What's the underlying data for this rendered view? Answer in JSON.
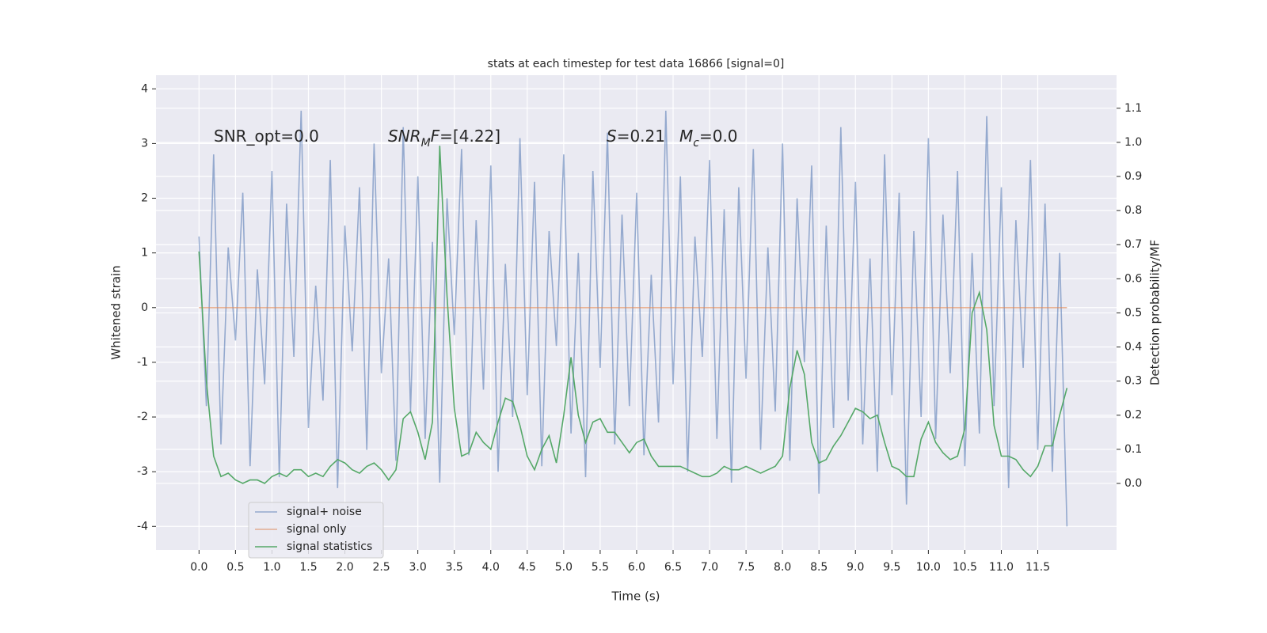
{
  "chart_data": {
    "type": "line",
    "title": "stats at each timestep for test data 16866 [signal=0]",
    "xlabel": "Time (s)",
    "ylabel": "Whitened strain",
    "y2label": "Detection probability/MF",
    "annotations": [
      {
        "parts": [
          {
            "text": "SNR_opt=0.0",
            "style": "normal"
          }
        ]
      },
      {
        "parts": [
          {
            "text": "SNR",
            "style": "italic"
          },
          {
            "text": "M",
            "style": "sub"
          },
          {
            "text": "F",
            "style": "italic"
          },
          {
            "text": "=[4.22]",
            "style": "normal"
          }
        ]
      },
      {
        "parts": [
          {
            "text": "S",
            "style": "italic"
          },
          {
            "text": "=0.21",
            "style": "normal"
          }
        ]
      },
      {
        "parts": [
          {
            "text": "M",
            "style": "italic"
          },
          {
            "text": "c",
            "style": "sub"
          },
          {
            "text": "=0.0",
            "style": "normal"
          }
        ]
      }
    ],
    "x": [
      0,
      0.1,
      0.2,
      0.3,
      0.4,
      0.5,
      0.6,
      0.7,
      0.8,
      0.9,
      1,
      1.1,
      1.2,
      1.3,
      1.4,
      1.5,
      1.6,
      1.7,
      1.8,
      1.9,
      2,
      2.1,
      2.2,
      2.3,
      2.4,
      2.5,
      2.6,
      2.7,
      2.8,
      2.9,
      3,
      3.1,
      3.2,
      3.3,
      3.4,
      3.5,
      3.6,
      3.7,
      3.8,
      3.9,
      4,
      4.1,
      4.2,
      4.3,
      4.4,
      4.5,
      4.6,
      4.7,
      4.8,
      4.9,
      5,
      5.1,
      5.2,
      5.3,
      5.4,
      5.5,
      5.6,
      5.7,
      5.8,
      5.9,
      6,
      6.1,
      6.2,
      6.3,
      6.4,
      6.5,
      6.6,
      6.7,
      6.8,
      6.9,
      7,
      7.1,
      7.2,
      7.3,
      7.4,
      7.5,
      7.6,
      7.7,
      7.8,
      7.9,
      8,
      8.1,
      8.2,
      8.3,
      8.4,
      8.5,
      8.6,
      8.7,
      8.8,
      8.9,
      9,
      9.1,
      9.2,
      9.3,
      9.4,
      9.5,
      9.6,
      9.7,
      9.8,
      9.9,
      10,
      10.1,
      10.2,
      10.3,
      10.4,
      10.5,
      10.6,
      10.7,
      10.8,
      10.9,
      11,
      11.1,
      11.2,
      11.3,
      11.4,
      11.5,
      11.6,
      11.7,
      11.8,
      11.9
    ],
    "series": [
      {
        "name": "signal+ noise",
        "color": "#4c72b0",
        "opacity": 0.55,
        "axis": "y",
        "values": [
          1.3,
          -1.8,
          2.8,
          -2.5,
          1.1,
          -0.6,
          2.1,
          -2.9,
          0.7,
          -1.4,
          2.5,
          -3.1,
          1.9,
          -0.9,
          3.6,
          -2.2,
          0.4,
          -1.7,
          2.7,
          -3.3,
          1.5,
          -0.8,
          2.2,
          -2.6,
          3.0,
          -1.2,
          0.9,
          -2.8,
          3.3,
          -1.9,
          2.4,
          -2.4,
          1.2,
          -3.2,
          2.0,
          -0.5,
          2.9,
          -2.7,
          1.6,
          -1.5,
          2.6,
          -3.0,
          0.8,
          -2.0,
          3.1,
          -1.6,
          2.3,
          -2.9,
          1.4,
          -0.7,
          2.8,
          -2.3,
          1.0,
          -3.1,
          2.5,
          -1.1,
          3.2,
          -2.5,
          1.7,
          -1.8,
          2.1,
          -2.7,
          0.6,
          -2.1,
          3.6,
          -1.4,
          2.4,
          -3.0,
          1.3,
          -0.9,
          2.7,
          -2.4,
          1.8,
          -3.2,
          2.2,
          -1.3,
          2.9,
          -2.6,
          1.1,
          -1.9,
          3.0,
          -2.8,
          2.0,
          -1.0,
          2.6,
          -3.4,
          1.5,
          -2.2,
          3.3,
          -1.7,
          2.3,
          -2.5,
          0.9,
          -3.0,
          2.8,
          -1.6,
          2.1,
          -3.6,
          1.4,
          -2.0,
          3.1,
          -2.4,
          1.7,
          -1.2,
          2.5,
          -2.9,
          1.0,
          -2.3,
          3.5,
          -1.8,
          2.2,
          -3.3,
          1.6,
          -1.1,
          2.7,
          -2.6,
          1.9,
          -3.0,
          1.0,
          -4.0
        ]
      },
      {
        "name": "signal only",
        "color": "#dd8452",
        "opacity": 0.6,
        "axis": "y",
        "values": [
          0,
          0,
          0,
          0,
          0,
          0,
          0,
          0,
          0,
          0,
          0,
          0,
          0,
          0,
          0,
          0,
          0,
          0,
          0,
          0,
          0,
          0,
          0,
          0,
          0,
          0,
          0,
          0,
          0,
          0,
          0,
          0,
          0,
          0,
          0,
          0,
          0,
          0,
          0,
          0,
          0,
          0,
          0,
          0,
          0,
          0,
          0,
          0,
          0,
          0,
          0,
          0,
          0,
          0,
          0,
          0,
          0,
          0,
          0,
          0,
          0,
          0,
          0,
          0,
          0,
          0,
          0,
          0,
          0,
          0,
          0,
          0,
          0,
          0,
          0,
          0,
          0,
          0,
          0,
          0,
          0,
          0,
          0,
          0,
          0,
          0,
          0,
          0,
          0,
          0,
          0,
          0,
          0,
          0,
          0,
          0,
          0,
          0,
          0,
          0,
          0,
          0,
          0,
          0,
          0,
          0,
          0,
          0,
          0,
          0,
          0,
          0,
          0,
          0,
          0,
          0,
          0,
          0,
          0,
          0
        ]
      },
      {
        "name": "signal statistics",
        "color": "#55a868",
        "opacity": 1,
        "axis": "y2",
        "values": [
          0.68,
          0.3,
          0.08,
          0.02,
          0.03,
          0.01,
          0.0,
          0.01,
          0.01,
          0.0,
          0.02,
          0.03,
          0.02,
          0.04,
          0.04,
          0.02,
          0.03,
          0.02,
          0.05,
          0.07,
          0.06,
          0.04,
          0.03,
          0.05,
          0.06,
          0.04,
          0.01,
          0.04,
          0.19,
          0.21,
          0.15,
          0.07,
          0.18,
          0.99,
          0.55,
          0.22,
          0.08,
          0.09,
          0.15,
          0.12,
          0.1,
          0.18,
          0.25,
          0.24,
          0.17,
          0.08,
          0.04,
          0.1,
          0.14,
          0.06,
          0.2,
          0.37,
          0.2,
          0.12,
          0.18,
          0.19,
          0.15,
          0.15,
          0.12,
          0.09,
          0.12,
          0.13,
          0.08,
          0.05,
          0.05,
          0.05,
          0.05,
          0.04,
          0.03,
          0.02,
          0.02,
          0.03,
          0.05,
          0.04,
          0.04,
          0.05,
          0.04,
          0.03,
          0.04,
          0.05,
          0.08,
          0.28,
          0.39,
          0.32,
          0.12,
          0.06,
          0.07,
          0.11,
          0.14,
          0.18,
          0.22,
          0.21,
          0.19,
          0.2,
          0.12,
          0.05,
          0.04,
          0.02,
          0.02,
          0.13,
          0.18,
          0.12,
          0.09,
          0.07,
          0.08,
          0.16,
          0.5,
          0.56,
          0.45,
          0.17,
          0.08,
          0.08,
          0.07,
          0.04,
          0.02,
          0.05,
          0.11,
          0.11,
          0.2,
          0.28
        ]
      }
    ],
    "xlim": [
      -0.59,
      12.58
    ],
    "xticks": [
      {
        "value": 0,
        "label": "0.0"
      },
      0.5,
      {
        "value": 1,
        "label": "1.0"
      },
      1.5,
      {
        "value": 2,
        "label": "2.0"
      },
      2.5,
      {
        "value": 3,
        "label": "3.0"
      },
      3.5,
      {
        "value": 4,
        "label": "4.0"
      },
      4.5,
      {
        "value": 5,
        "label": "5.0"
      },
      5.5,
      {
        "value": 6,
        "label": "6.0"
      },
      6.5,
      {
        "value": 7,
        "label": "7.0"
      },
      7.5,
      {
        "value": 8,
        "label": "8.0"
      },
      8.5,
      {
        "value": 9,
        "label": "9.0"
      },
      9.5,
      {
        "value": 10,
        "label": "10.0"
      },
      10.5,
      {
        "value": 11,
        "label": "11.0"
      },
      11.5
    ],
    "ylim": [
      -4.43,
      4.25
    ],
    "yticks": [
      -4,
      -3,
      -2,
      -1,
      0,
      1,
      2,
      3,
      4
    ],
    "y2lim": [
      -0.195,
      1.197
    ],
    "y2ticks": [
      {
        "value": 0,
        "label": "0.0"
      },
      0.1,
      0.2,
      0.3,
      0.4,
      0.5,
      0.6,
      0.7,
      0.8,
      0.9,
      {
        "value": 1,
        "label": "1.0"
      },
      1.1
    ],
    "grid": true,
    "legend_loc": "lower left"
  }
}
